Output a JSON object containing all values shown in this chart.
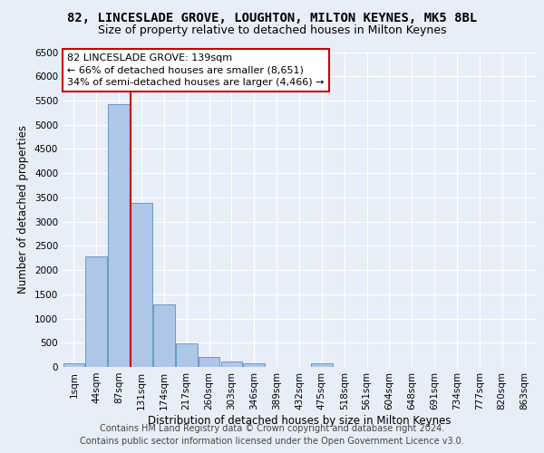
{
  "title_line1": "82, LINCESLADE GROVE, LOUGHTON, MILTON KEYNES, MK5 8BL",
  "title_line2": "Size of property relative to detached houses in Milton Keynes",
  "xlabel": "Distribution of detached houses by size in Milton Keynes",
  "ylabel": "Number of detached properties",
  "footer_line1": "Contains HM Land Registry data © Crown copyright and database right 2024.",
  "footer_line2": "Contains public sector information licensed under the Open Government Licence v3.0.",
  "annotation_line1": "82 LINCESLADE GROVE: 139sqm",
  "annotation_line2": "← 66% of detached houses are smaller (8,651)",
  "annotation_line3": "34% of semi-detached houses are larger (4,466) →",
  "bar_labels": [
    "1sqm",
    "44sqm",
    "87sqm",
    "131sqm",
    "174sqm",
    "217sqm",
    "260sqm",
    "303sqm",
    "346sqm",
    "389sqm",
    "432sqm",
    "475sqm",
    "518sqm",
    "561sqm",
    "604sqm",
    "648sqm",
    "691sqm",
    "734sqm",
    "777sqm",
    "820sqm",
    "863sqm"
  ],
  "bar_values": [
    75,
    2280,
    5420,
    3380,
    1300,
    480,
    210,
    110,
    75,
    0,
    0,
    75,
    0,
    0,
    0,
    0,
    0,
    0,
    0,
    0,
    0
  ],
  "bar_color": "#aec6e8",
  "bar_edge_color": "#5a8fc0",
  "vline_x": 2.5,
  "vline_color": "#cc0000",
  "annotation_box_color": "#cc0000",
  "ylim": [
    0,
    6500
  ],
  "yticks": [
    0,
    500,
    1000,
    1500,
    2000,
    2500,
    3000,
    3500,
    4000,
    4500,
    5000,
    5500,
    6000,
    6500
  ],
  "bg_color": "#e8eef8",
  "plot_bg_color": "#e8eef8",
  "grid_color": "#ffffff",
  "title_fontsize": 10,
  "subtitle_fontsize": 9,
  "axis_label_fontsize": 8.5,
  "tick_fontsize": 7.5,
  "annotation_fontsize": 8,
  "footer_fontsize": 7
}
